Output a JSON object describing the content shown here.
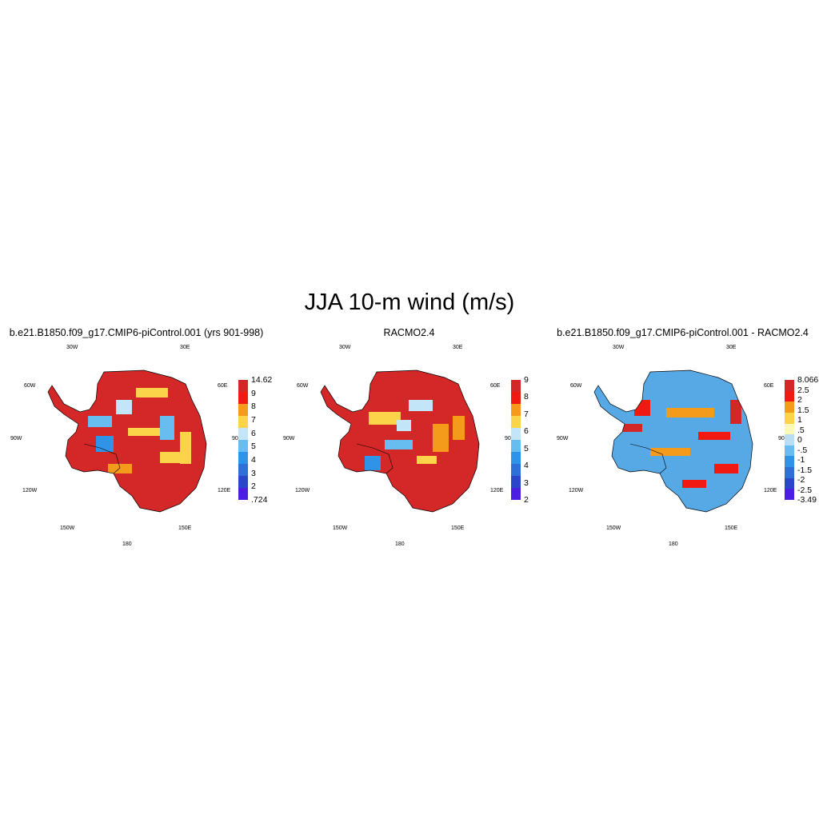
{
  "figure": {
    "title": "JJA 10-m wind (m/s)"
  },
  "colors": {
    "coastline": "#000000",
    "panel1_base": "#d42828",
    "panel2_base": "#d42828",
    "panel3_base": "#57a9e6"
  },
  "panels": [
    {
      "id": "model",
      "title": "b.e21.B1850.f09_g17.CMIP6-piControl.001 (yrs 901-998)",
      "lon_labels": {
        "w30": "30W",
        "e30": "30E",
        "w60": "60W",
        "e60": "60E",
        "w90": "90W",
        "e90": "90E",
        "w120": "120W",
        "e120": "120E",
        "w150": "150W",
        "e150": "150E",
        "s180": "180"
      },
      "colorbar": {
        "colors": [
          "#4b1ee3",
          "#2a47c9",
          "#2e6fd8",
          "#2f94e8",
          "#67bdf0",
          "#c2e5f8",
          "#fbd44a",
          "#f59b1b",
          "#f11a12",
          "#d42828"
        ],
        "labels": [
          ".724",
          "2",
          "3",
          "4",
          "5",
          "6",
          "7",
          "8",
          "9",
          "14.62"
        ]
      }
    },
    {
      "id": "obs",
      "title": "RACMO2.4",
      "lon_labels": {
        "w30": "30W",
        "e30": "30E",
        "w60": "60W",
        "e60": "60E",
        "w90": "90W",
        "e90": "90E",
        "w120": "120W",
        "e120": "120E",
        "w150": "150W",
        "e150": "150E",
        "s180": "180"
      },
      "colorbar": {
        "colors": [
          "#4b1ee3",
          "#2a47c9",
          "#2e6fd8",
          "#2f94e8",
          "#67bdf0",
          "#c2e5f8",
          "#fbd44a",
          "#f59b1b",
          "#f11a12",
          "#d42828"
        ],
        "labels": [
          "2",
          "3",
          "4",
          "5",
          "6",
          "7",
          "8",
          "9"
        ]
      }
    },
    {
      "id": "diff",
      "title": "b.e21.B1850.f09_g17.CMIP6-piControl.001 - RACMO2.4",
      "lon_labels": {
        "w30": "30W",
        "e30": "30E",
        "w60": "60W",
        "e60": "60E",
        "w90": "90W",
        "e90": "90E",
        "w120": "120W",
        "e120": "120E",
        "w150": "150W",
        "e150": "150E",
        "s180": "180"
      },
      "colorbar": {
        "colors": [
          "#4b1ee3",
          "#2a47c9",
          "#2e6fd8",
          "#2f94e8",
          "#67bdf0",
          "#b9def4",
          "#fdfab8",
          "#fbd44a",
          "#f59b1b",
          "#f11a12",
          "#d42828"
        ],
        "labels": [
          "-3.49",
          "-2.5",
          "-2",
          "-1.5",
          "-1",
          "-.5",
          "0",
          ".5",
          "1",
          "1.5",
          "2",
          "2.5",
          "8.066"
        ]
      }
    }
  ]
}
